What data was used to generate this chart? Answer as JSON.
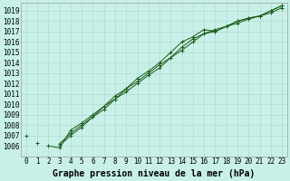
{
  "title": "Graphe pression niveau de la mer (hPa)",
  "bg_color": "#c8f0e8",
  "grid_color": "#b0ddd0",
  "line_color": "#1a5c1a",
  "x_values": [
    0,
    1,
    2,
    3,
    4,
    5,
    6,
    7,
    8,
    9,
    10,
    11,
    12,
    13,
    14,
    15,
    16,
    17,
    18,
    19,
    20,
    21,
    22,
    23
  ],
  "series1": [
    1007.0,
    null,
    1006.0,
    1005.8,
    1007.5,
    1008.2,
    1009.0,
    1009.8,
    1010.8,
    1011.5,
    1012.5,
    1013.2,
    1014.0,
    1015.0,
    1016.0,
    1016.5,
    1017.2,
    1017.0,
    1017.5,
    1018.0,
    1018.3,
    1018.5,
    1019.0,
    1019.5
  ],
  "series2": [
    null,
    1006.3,
    null,
    1006.2,
    1007.2,
    1008.0,
    1008.8,
    1009.8,
    1010.5,
    1011.5,
    1012.2,
    1013.0,
    1013.8,
    1014.5,
    1015.5,
    1016.3,
    1016.8,
    1017.2,
    1017.5,
    1018.0,
    1018.3,
    1018.5,
    1018.8,
    1019.3
  ],
  "series3": [
    null,
    null,
    null,
    1006.0,
    1007.0,
    1007.8,
    1008.8,
    1009.5,
    1010.5,
    1011.2,
    1012.0,
    1012.8,
    1013.5,
    1014.5,
    1015.2,
    1016.0,
    1016.8,
    1017.0,
    1017.5,
    1017.8,
    1018.2,
    1018.5,
    1019.0,
    1019.5
  ],
  "ylim_min": 1005,
  "ylim_max": 1019.8,
  "yticks": [
    1006,
    1007,
    1008,
    1009,
    1010,
    1011,
    1012,
    1013,
    1014,
    1015,
    1016,
    1017,
    1018,
    1019
  ],
  "xlim_min": -0.5,
  "xlim_max": 23.5,
  "xticks": [
    0,
    1,
    2,
    3,
    4,
    5,
    6,
    7,
    8,
    9,
    10,
    11,
    12,
    13,
    14,
    15,
    16,
    17,
    18,
    19,
    20,
    21,
    22,
    23
  ],
  "title_fontsize": 7,
  "tick_fontsize": 5.5,
  "marker": "+"
}
